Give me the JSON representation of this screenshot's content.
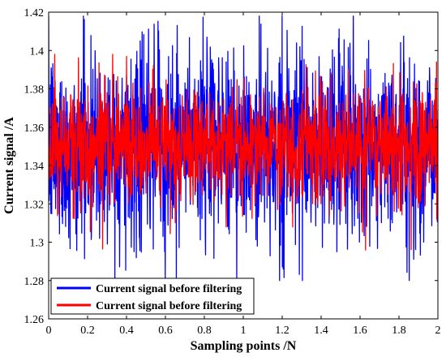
{
  "chart_data": {
    "type": "line",
    "xlabel": "Sampling points /N",
    "ylabel": "Current signal /A",
    "xlim": [
      0,
      2
    ],
    "ylim": [
      1.26,
      1.42
    ],
    "xticks": [
      0,
      0.2,
      0.4,
      0.6,
      0.8,
      1,
      1.2,
      1.4,
      1.6,
      1.8,
      2
    ],
    "yticks": [
      1.26,
      1.28,
      1.3,
      1.32,
      1.34,
      1.36,
      1.38,
      1.4,
      1.42
    ],
    "xtick_labels": [
      "0",
      "0.2",
      "0.4",
      "0.6",
      "0.8",
      "1",
      "1.2",
      "1.4",
      "1.6",
      "1.8",
      "2"
    ],
    "ytick_labels": [
      "1.26",
      "1.28",
      "1.3",
      "1.32",
      "1.34",
      "1.36",
      "1.38",
      "1.4",
      "1.42"
    ],
    "grid": false,
    "legend_position": "bottom-left",
    "series": [
      {
        "name": "Current signal before filtering",
        "color": "#0000ff",
        "mean": 1.35,
        "typical_range": [
          1.3,
          1.4
        ],
        "extremes": [
          1.28,
          1.418
        ],
        "x_range": [
          0,
          2
        ]
      },
      {
        "name": "Current signal before filtering",
        "color": "#ff0000",
        "mean": 1.35,
        "typical_range": [
          1.32,
          1.38
        ],
        "extremes": [
          1.294,
          1.398
        ],
        "x_range": [
          0,
          2
        ]
      }
    ]
  }
}
